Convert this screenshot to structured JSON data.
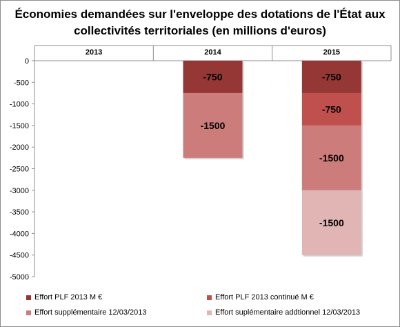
{
  "chart_data": {
    "type": "bar",
    "stacked": true,
    "title": "Économies demandées sur l'enveloppe des dotations de l'État aux collectivités territoriales (en millions d'euros)",
    "categories": [
      "2013",
      "2014",
      "2015"
    ],
    "category_axis_position": "top",
    "ylim": [
      -5000,
      0
    ],
    "y_ticks": [
      0,
      -500,
      -1000,
      -1500,
      -2000,
      -2500,
      -3000,
      -3500,
      -4000,
      -4500,
      -5000
    ],
    "grid": false,
    "legend_position": "bottom",
    "series": [
      {
        "name": "Effort PLF 2013 M €",
        "values": [
          0,
          -750,
          -750
        ],
        "color": "#953735"
      },
      {
        "name": "Effort PLF 2013 continué M €",
        "values": [
          0,
          0,
          -750
        ],
        "color": "#c0504d"
      },
      {
        "name": "Effort supplémentaire 12/03/2013",
        "values": [
          0,
          -1500,
          -1500
        ],
        "color": "#cc7c7b"
      },
      {
        "name": "Effort suplémentaire addtionnel 12/03/2013",
        "values": [
          0,
          0,
          -1500
        ],
        "color": "#e0b5b4"
      }
    ],
    "data_labels": true
  }
}
